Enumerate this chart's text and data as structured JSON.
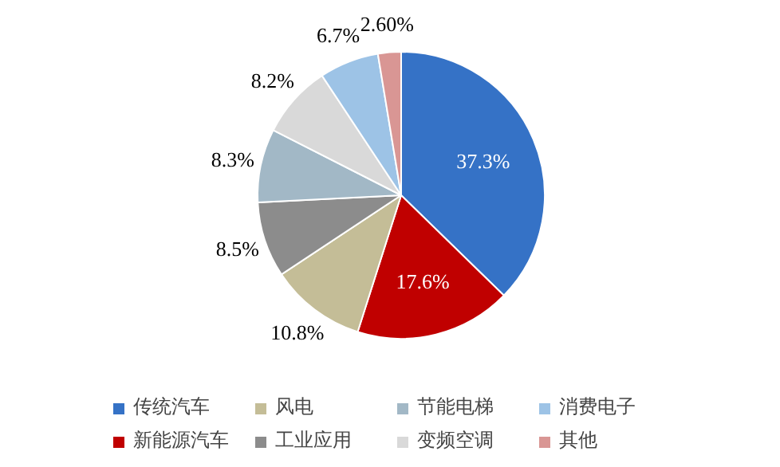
{
  "chart_data": {
    "type": "pie",
    "categories": [
      "传统汽车",
      "新能源汽车",
      "风电",
      "工业应用",
      "节能电梯",
      "变频空调",
      "消费电子",
      "其他"
    ],
    "values": [
      37.3,
      17.6,
      10.8,
      8.5,
      8.3,
      8.2,
      6.7,
      2.6
    ],
    "value_labels": [
      "37.3%",
      "17.6%",
      "10.8%",
      "8.5%",
      "8.3%",
      "8.2%",
      "6.7%",
      "2.60%"
    ],
    "colors": [
      "#3572c6",
      "#c00000",
      "#c4bd97",
      "#8c8c8c",
      "#a2b8c6",
      "#d9d9d9",
      "#9dc3e6",
      "#d99694"
    ],
    "legend": "bottom"
  }
}
